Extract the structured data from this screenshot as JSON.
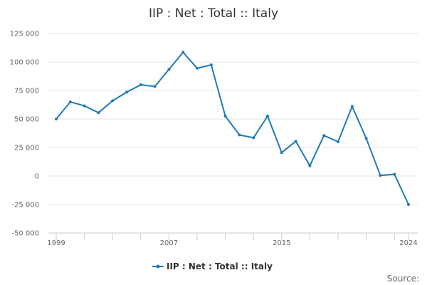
{
  "chart_data": {
    "type": "line",
    "title": "IIP : Net : Total :: Italy",
    "xlabel": "",
    "ylabel": "",
    "x": [
      1999,
      2000,
      2001,
      2002,
      2003,
      2004,
      2005,
      2006,
      2007,
      2008,
      2009,
      2010,
      2011,
      2012,
      2013,
      2014,
      2015,
      2016,
      2017,
      2018,
      2019,
      2020,
      2021,
      2022,
      2023,
      2024
    ],
    "series": [
      {
        "name": "IIP : Net : Total :: Italy",
        "color": "#1f7bb6",
        "values": [
          50000,
          65000,
          61500,
          55500,
          66000,
          73500,
          80000,
          78500,
          93500,
          108500,
          94500,
          97500,
          52500,
          36000,
          33500,
          52500,
          20500,
          30500,
          9000,
          35500,
          30000,
          61000,
          33000,
          500,
          1500,
          -25000
        ]
      }
    ],
    "ylim": [
      -50000,
      125000
    ],
    "xlim": [
      1999,
      2024
    ],
    "y_ticks": [
      -50000,
      -25000,
      0,
      25000,
      50000,
      75000,
      100000,
      125000
    ],
    "y_tick_labels": [
      "-50 000",
      "-25 000",
      "0",
      "25 000",
      "50 000",
      "75 000",
      "100 000",
      "125 000"
    ],
    "x_tick_labels": [
      "1999",
      "2007",
      "2015",
      "2024"
    ],
    "x_tick_values": [
      1999,
      2007,
      2015,
      2024
    ],
    "grid": true,
    "legend_position": "bottom-center",
    "source_label": "Source:"
  }
}
